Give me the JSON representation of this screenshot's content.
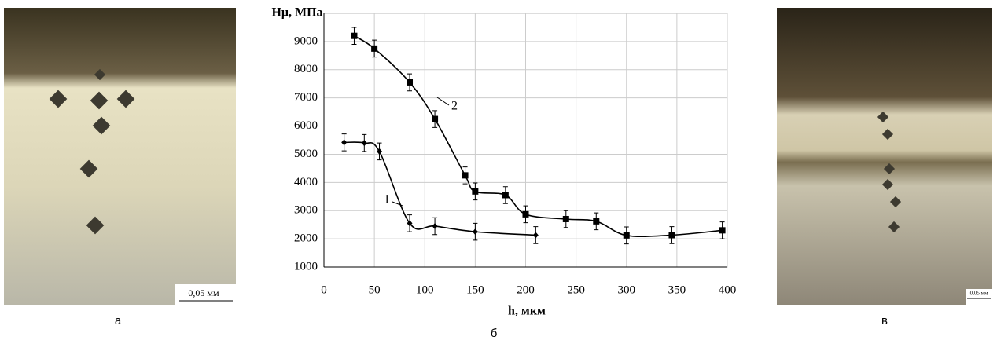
{
  "chart_data": {
    "type": "line",
    "y_label": "Hμ, МПа",
    "x_label": "h, мкм",
    "xlim": [
      0,
      400
    ],
    "xticks": [
      0,
      50,
      100,
      150,
      200,
      250,
      300,
      350,
      400
    ],
    "ylim": [
      1000,
      10000
    ],
    "yticks": [
      1000,
      2000,
      3000,
      4000,
      5000,
      6000,
      7000,
      8000,
      9000
    ],
    "grid": true,
    "series": [
      {
        "name": "1",
        "color": "#000000",
        "marker": "diamond",
        "x": [
          20,
          40,
          55,
          85,
          110,
          150,
          210
        ],
        "values": [
          5420,
          5400,
          5100,
          2550,
          2450,
          2250,
          2130
        ],
        "errors": [
          300,
          300,
          300,
          300,
          300,
          300,
          300
        ]
      },
      {
        "name": "2",
        "color": "#000000",
        "marker": "square",
        "x": [
          30,
          50,
          85,
          110,
          140,
          150,
          180,
          200,
          240,
          270,
          300,
          345,
          395
        ],
        "values": [
          9200,
          8750,
          7550,
          6250,
          4250,
          3680,
          3550,
          2870,
          2700,
          2620,
          2120,
          2130,
          2300
        ],
        "errors": [
          300,
          300,
          300,
          300,
          300,
          300,
          300,
          300,
          300,
          300,
          300,
          300,
          300
        ]
      }
    ]
  },
  "panels": [
    {
      "label": "а",
      "scale_label": "0,05 мм"
    },
    {
      "label": "б"
    },
    {
      "label": "в",
      "scale_label": "0,05 мм"
    }
  ]
}
